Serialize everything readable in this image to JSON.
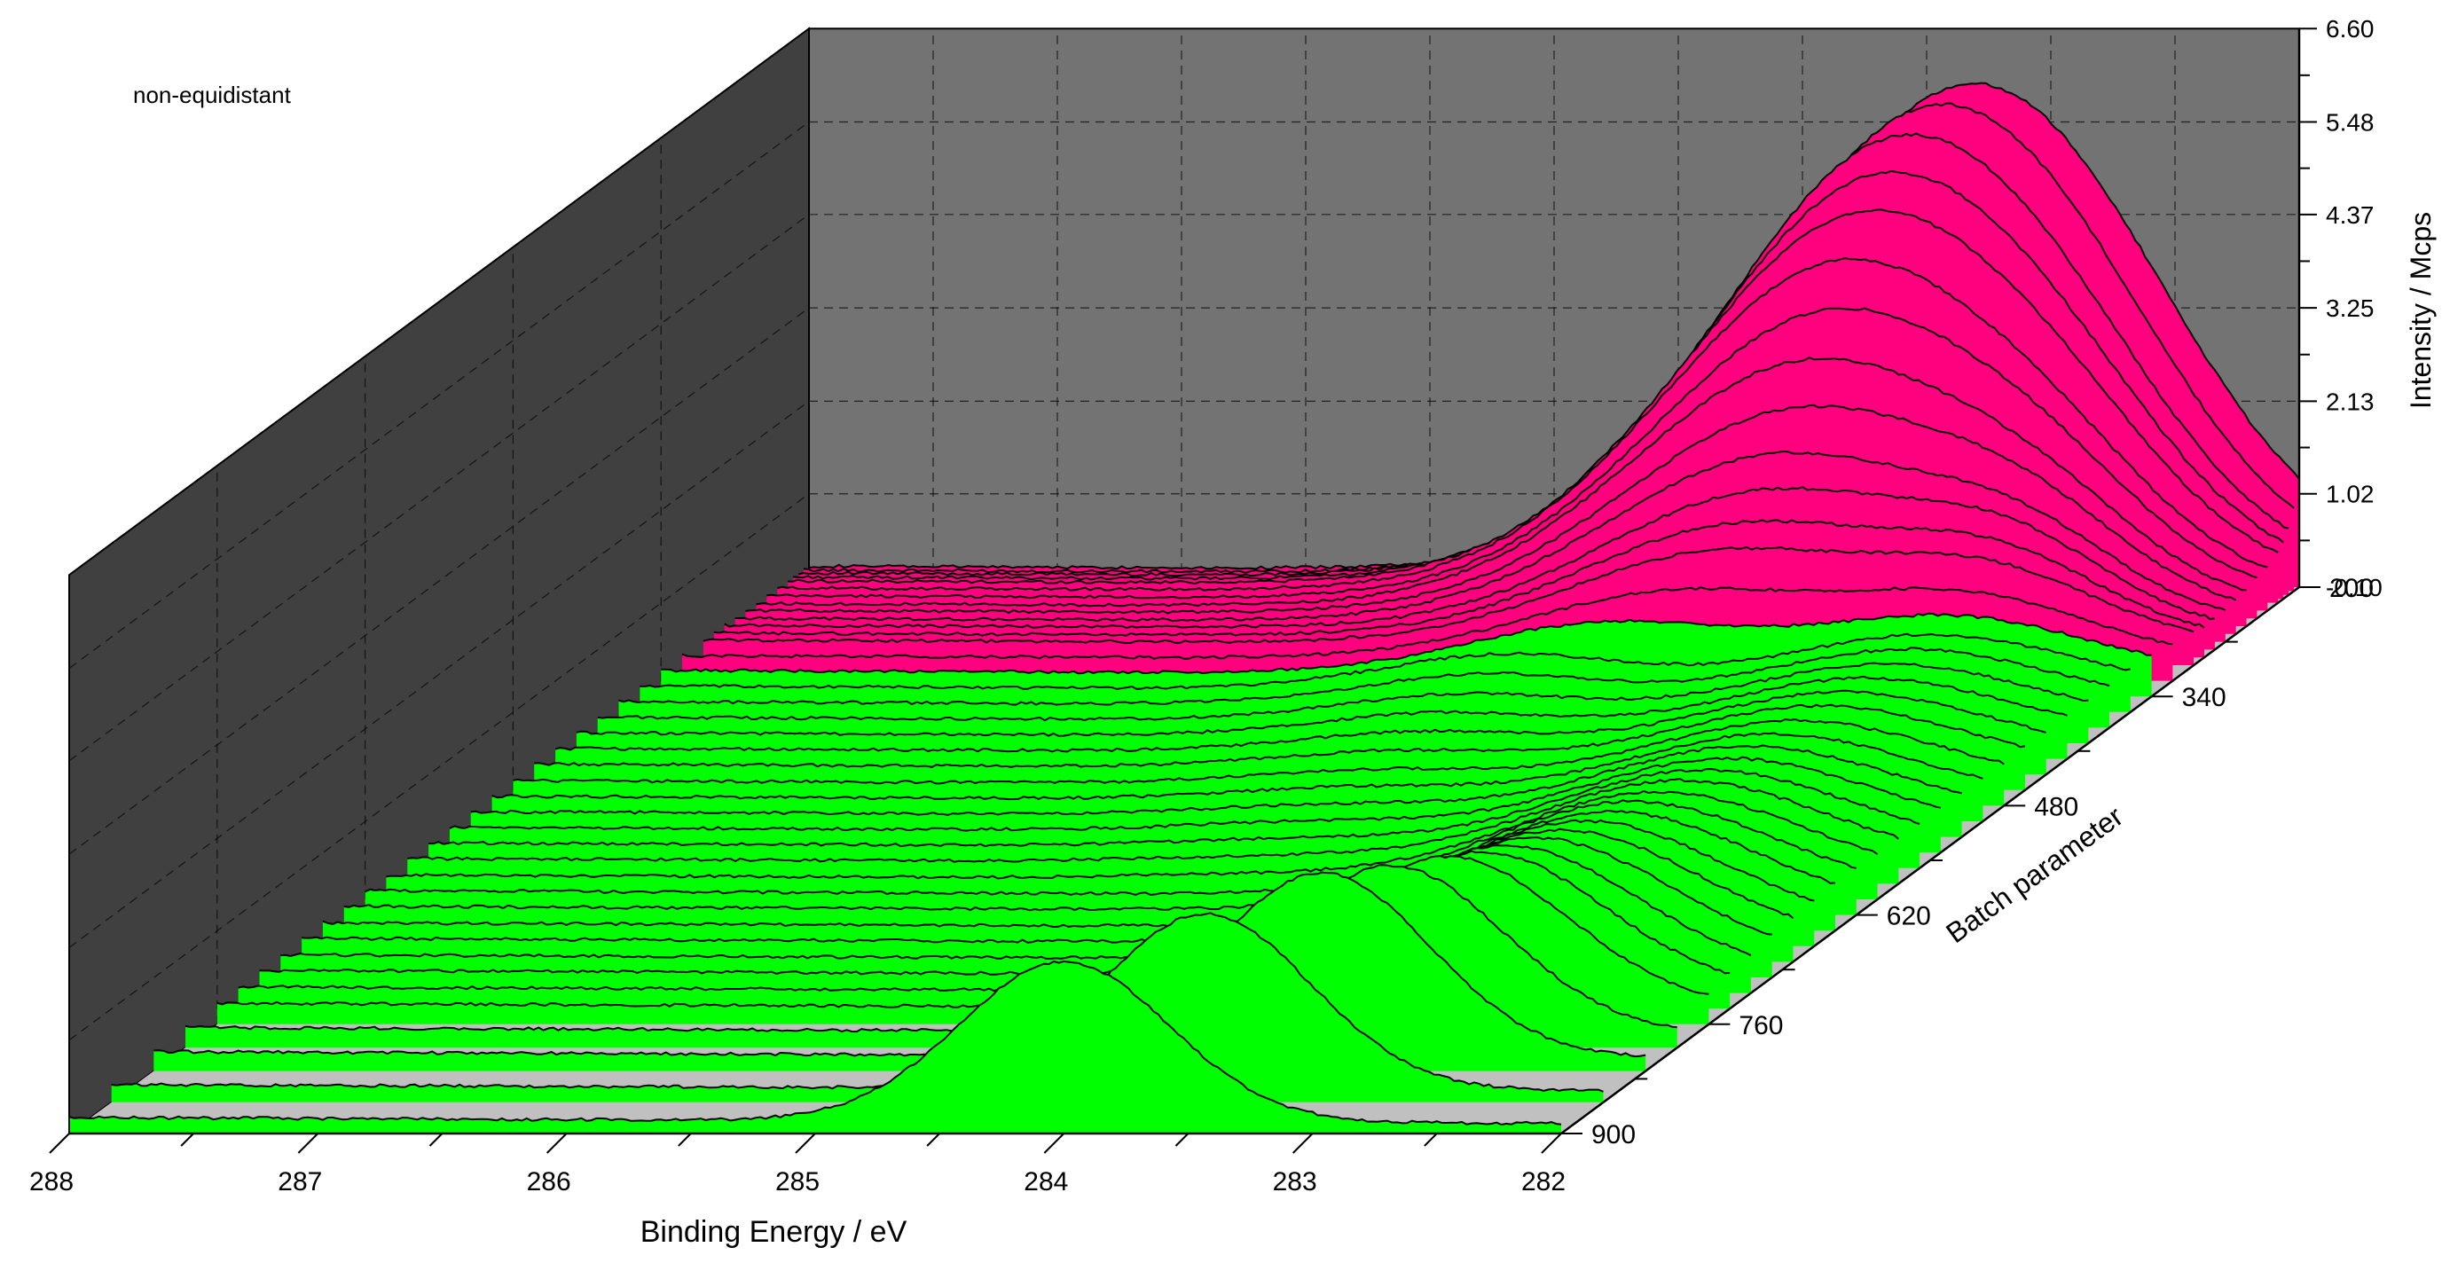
{
  "annotation": "non-equidistant",
  "colors": {
    "background": "#ffffff",
    "back_wall": "#737373",
    "side_wall": "#404040",
    "floor": "#c0c0c0",
    "ribbon_high_batch": "#00ff00",
    "ribbon_low_batch": "#ff007f",
    "outline": "#000000",
    "grid": "#000000"
  },
  "chart_data": {
    "type": "area",
    "title": "",
    "xlabel": "Binding Energy / eV",
    "ylabel": "Batch parameter",
    "zlabel": "Intensity / Mcps",
    "xlim": [
      288,
      282
    ],
    "zlim": [
      -0.1,
      6.6
    ],
    "x_ticks": [
      "288",
      "287",
      "286",
      "285",
      "284",
      "283",
      "282"
    ],
    "y_ticks": [
      "200",
      "340",
      "480",
      "620",
      "760",
      "900"
    ],
    "z_ticks": [
      "-0.10",
      "1.02",
      "2.13",
      "3.25",
      "4.37",
      "5.48",
      "6.60"
    ],
    "grid": true,
    "batch_values": [
      900,
      860,
      820,
      790,
      760,
      740,
      720,
      700,
      680,
      660,
      640,
      620,
      600,
      580,
      560,
      540,
      520,
      500,
      480,
      460,
      440,
      420,
      400,
      380,
      360,
      340,
      320,
      300,
      290,
      280,
      270,
      260,
      250,
      240,
      230,
      220,
      215,
      210,
      205,
      200
    ],
    "green_batch_min": 340,
    "series_model": "each spectrum = up to three Gaussian components, values in Mcps",
    "series": [
      {
        "batch": 900,
        "peaks": [
          [
            284.0,
            1.92,
            0.42
          ]
        ],
        "baseline": 0.02
      },
      {
        "batch": 860,
        "peaks": [
          [
            283.6,
            2.1,
            0.42
          ]
        ],
        "baseline": 0.04
      },
      {
        "batch": 820,
        "peaks": [
          [
            283.3,
            2.2,
            0.43
          ]
        ],
        "baseline": 0.06
      },
      {
        "batch": 790,
        "peaks": [
          [
            283.15,
            2.0,
            0.45
          ]
        ],
        "baseline": 0.07
      },
      {
        "batch": 760,
        "peaks": [
          [
            283.05,
            1.82,
            0.48
          ]
        ],
        "baseline": 0.08
      },
      {
        "batch": 740,
        "peaks": [
          [
            283.0,
            1.68,
            0.5
          ]
        ],
        "baseline": 0.09
      },
      {
        "batch": 720,
        "peaks": [
          [
            282.98,
            1.56,
            0.52
          ]
        ],
        "baseline": 0.1
      },
      {
        "batch": 700,
        "peaks": [
          [
            282.95,
            1.46,
            0.54
          ]
        ],
        "baseline": 0.1
      },
      {
        "batch": 680,
        "peaks": [
          [
            282.93,
            1.36,
            0.55
          ]
        ],
        "baseline": 0.11
      },
      {
        "batch": 660,
        "peaks": [
          [
            282.92,
            1.28,
            0.56
          ]
        ],
        "baseline": 0.11
      },
      {
        "batch": 640,
        "peaks": [
          [
            282.9,
            1.2,
            0.57
          ]
        ],
        "baseline": 0.12
      },
      {
        "batch": 620,
        "peaks": [
          [
            282.9,
            1.13,
            0.58
          ]
        ],
        "baseline": 0.12
      },
      {
        "batch": 600,
        "peaks": [
          [
            282.88,
            1.06,
            0.58
          ],
          [
            284.5,
            0.05,
            0.5
          ]
        ],
        "baseline": 0.12
      },
      {
        "batch": 580,
        "peaks": [
          [
            282.87,
            1.0,
            0.58
          ],
          [
            284.5,
            0.07,
            0.5
          ]
        ],
        "baseline": 0.13
      },
      {
        "batch": 560,
        "peaks": [
          [
            282.86,
            0.94,
            0.58
          ],
          [
            284.5,
            0.09,
            0.5
          ]
        ],
        "baseline": 0.13
      },
      {
        "batch": 540,
        "peaks": [
          [
            282.85,
            0.89,
            0.58
          ],
          [
            284.5,
            0.11,
            0.5
          ]
        ],
        "baseline": 0.13
      },
      {
        "batch": 520,
        "peaks": [
          [
            282.85,
            0.85,
            0.58
          ],
          [
            284.5,
            0.13,
            0.5
          ]
        ],
        "baseline": 0.13
      },
      {
        "batch": 500,
        "peaks": [
          [
            282.84,
            0.81,
            0.58
          ],
          [
            284.5,
            0.15,
            0.5
          ]
        ],
        "baseline": 0.13
      },
      {
        "batch": 480,
        "peaks": [
          [
            282.83,
            0.78,
            0.58
          ],
          [
            284.5,
            0.17,
            0.5
          ]
        ],
        "baseline": 0.13
      },
      {
        "batch": 460,
        "peaks": [
          [
            282.82,
            0.76,
            0.58
          ],
          [
            284.5,
            0.2,
            0.5
          ]
        ],
        "baseline": 0.14
      },
      {
        "batch": 440,
        "peaks": [
          [
            282.81,
            0.74,
            0.58
          ],
          [
            284.5,
            0.24,
            0.5
          ]
        ],
        "baseline": 0.14
      },
      {
        "batch": 420,
        "peaks": [
          [
            282.8,
            0.72,
            0.58
          ],
          [
            284.5,
            0.28,
            0.5
          ]
        ],
        "baseline": 0.14
      },
      {
        "batch": 400,
        "peaks": [
          [
            282.8,
            0.7,
            0.58
          ],
          [
            284.5,
            0.32,
            0.5
          ]
        ],
        "baseline": 0.14
      },
      {
        "batch": 380,
        "peaks": [
          [
            282.8,
            0.69,
            0.58
          ],
          [
            284.5,
            0.37,
            0.5
          ]
        ],
        "baseline": 0.14
      },
      {
        "batch": 360,
        "peaks": [
          [
            282.8,
            0.68,
            0.58
          ],
          [
            284.5,
            0.42,
            0.5
          ]
        ],
        "baseline": 0.14
      },
      {
        "batch": 340,
        "peaks": [
          [
            282.8,
            0.7,
            0.56
          ],
          [
            284.2,
            0.6,
            0.55
          ]
        ],
        "baseline": 0.14
      },
      {
        "batch": 320,
        "peaks": [
          [
            282.8,
            0.72,
            0.5
          ],
          [
            284.0,
            0.8,
            0.6
          ]
        ],
        "baseline": 0.13
      },
      {
        "batch": 300,
        "peaks": [
          [
            282.8,
            0.78,
            0.45
          ],
          [
            283.9,
            1.1,
            0.62
          ]
        ],
        "baseline": 0.13
      },
      {
        "batch": 290,
        "peaks": [
          [
            282.8,
            0.8,
            0.42
          ],
          [
            283.85,
            1.35,
            0.64
          ]
        ],
        "baseline": 0.12
      },
      {
        "batch": 280,
        "peaks": [
          [
            282.8,
            0.8,
            0.4
          ],
          [
            283.8,
            1.65,
            0.66
          ]
        ],
        "baseline": 0.12
      },
      {
        "batch": 270,
        "peaks": [
          [
            282.8,
            0.75,
            0.4
          ],
          [
            283.8,
            2.0,
            0.68
          ]
        ],
        "baseline": 0.11
      },
      {
        "batch": 260,
        "peaks": [
          [
            282.8,
            0.7,
            0.4
          ],
          [
            283.75,
            2.45,
            0.7
          ]
        ],
        "baseline": 0.11
      },
      {
        "batch": 250,
        "peaks": [
          [
            282.8,
            0.62,
            0.4
          ],
          [
            283.75,
            2.95,
            0.71
          ]
        ],
        "baseline": 0.1
      },
      {
        "batch": 240,
        "peaks": [
          [
            282.8,
            0.55,
            0.4
          ],
          [
            283.7,
            3.45,
            0.72
          ]
        ],
        "baseline": 0.1
      },
      {
        "batch": 230,
        "peaks": [
          [
            282.8,
            0.5,
            0.4
          ],
          [
            283.7,
            3.95,
            0.72
          ]
        ],
        "baseline": 0.1
      },
      {
        "batch": 220,
        "peaks": [
          [
            282.8,
            0.45,
            0.4
          ],
          [
            283.65,
            4.45,
            0.73
          ]
        ],
        "baseline": 0.09
      },
      {
        "batch": 215,
        "peaks": [
          [
            282.8,
            0.4,
            0.4
          ],
          [
            283.6,
            4.85,
            0.73
          ]
        ],
        "baseline": 0.09
      },
      {
        "batch": 210,
        "peaks": [
          [
            282.8,
            0.35,
            0.4
          ],
          [
            283.55,
            5.25,
            0.73
          ]
        ],
        "baseline": 0.09
      },
      {
        "batch": 205,
        "peaks": [
          [
            282.8,
            0.32,
            0.4
          ],
          [
            283.45,
            5.55,
            0.73
          ]
        ],
        "baseline": 0.08
      },
      {
        "batch": 200,
        "peaks": [
          [
            282.8,
            0.3,
            0.4
          ],
          [
            283.35,
            5.72,
            0.74
          ]
        ],
        "baseline": 0.08
      }
    ]
  }
}
